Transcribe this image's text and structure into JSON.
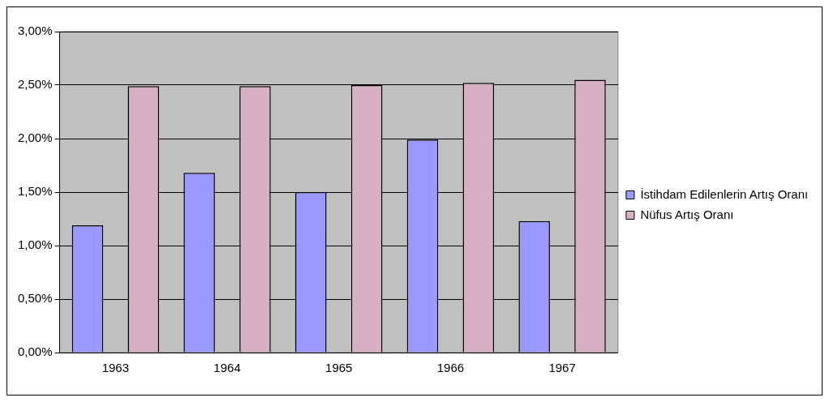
{
  "chart_data": {
    "type": "bar",
    "categories": [
      "1963",
      "1964",
      "1965",
      "1966",
      "1967"
    ],
    "series": [
      {
        "name": "İstihdam Edilenlerin Artış Oranı",
        "color": "#9999ff",
        "values": [
          1.19,
          1.68,
          1.5,
          1.99,
          1.23
        ]
      },
      {
        "name": "Nüfus Artış Oranı",
        "color": "#d8b0c4",
        "type": "bar",
        "values": [
          2.49,
          2.49,
          2.5,
          2.52,
          2.55
        ]
      }
    ],
    "ylim": [
      0,
      3
    ],
    "yticks": [
      {
        "value": 0,
        "label": "0,00%"
      },
      {
        "value": 0.5,
        "label": "0,50%"
      },
      {
        "value": 1,
        "label": "1,00%"
      },
      {
        "value": 1.5,
        "label": "1,50%"
      },
      {
        "value": 2,
        "label": "2,00%"
      },
      {
        "value": 2.5,
        "label": "2,50%"
      },
      {
        "value": 3,
        "label": "3,00%"
      }
    ],
    "grid": "y",
    "legend": "right"
  }
}
